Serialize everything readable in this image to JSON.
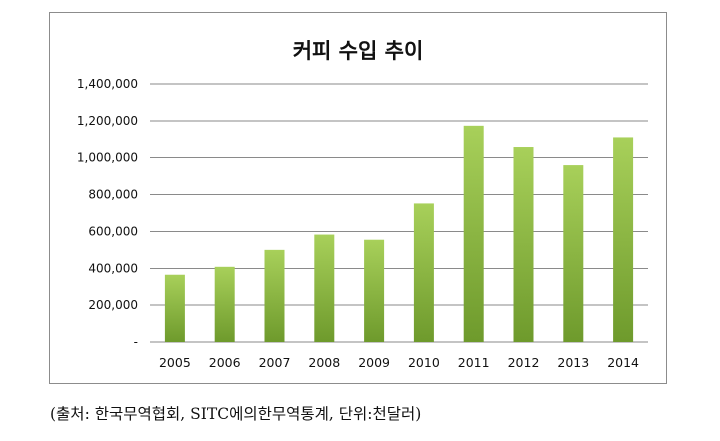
{
  "chart_data": {
    "type": "bar",
    "title": "커피 수입 추이",
    "categories": [
      "2005",
      "2006",
      "2007",
      "2008",
      "2009",
      "2010",
      "2011",
      "2012",
      "2013",
      "2014"
    ],
    "values": [
      365000,
      408000,
      500000,
      583000,
      555000,
      752000,
      1173000,
      1058000,
      960000,
      1110000
    ],
    "ylim": [
      0,
      1400000
    ],
    "y_ticks": [
      {
        "value": 0,
        "label": "-"
      },
      {
        "value": 200000,
        "label": "200,000"
      },
      {
        "value": 400000,
        "label": "400,000"
      },
      {
        "value": 600000,
        "label": "600,000"
      },
      {
        "value": 800000,
        "label": "800,000"
      },
      {
        "value": 1000000,
        "label": "1,000,000"
      },
      {
        "value": 1200000,
        "label": "1,200,000"
      },
      {
        "value": 1400000,
        "label": "1,400,000"
      }
    ],
    "grid": true,
    "legend": "none",
    "colors": {
      "bar_top": "#a8d05a",
      "bar_bottom": "#6e9a2c",
      "grid": "#8a8a8a"
    }
  },
  "footer": {
    "source_note": "(출처: 한국무역협회, SITC에의한무역통계, 단위:천달러)"
  }
}
